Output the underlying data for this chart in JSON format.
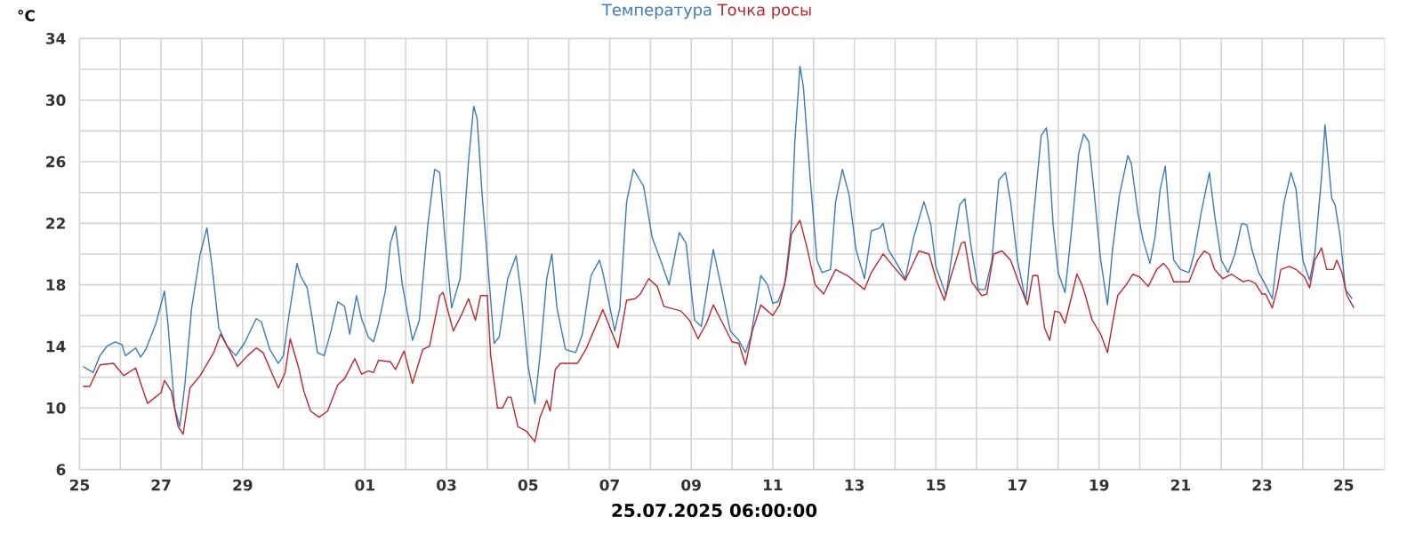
{
  "chart_data": {
    "type": "line",
    "ylabel": "°C",
    "xlabel": "25.07.2025 06:00:00",
    "legend": "top",
    "grid": true,
    "marker": "none",
    "line_style": "solid",
    "xlim": [
      "2025-07-25",
      "2025-08-26"
    ],
    "ylim": [
      6,
      34
    ],
    "xticks": [
      {
        "value": "2025-07-25",
        "label": "25"
      },
      {
        "value": "2025-07-26",
        "label": null
      },
      {
        "value": "2025-07-27",
        "label": "27"
      },
      {
        "value": "2025-07-28",
        "label": null
      },
      {
        "value": "2025-07-29",
        "label": "29"
      },
      {
        "value": "2025-07-30",
        "label": null
      },
      {
        "value": "2025-07-31",
        "label": null
      },
      {
        "value": "2025-08-01",
        "label": "01"
      },
      {
        "value": "2025-08-02",
        "label": null
      },
      {
        "value": "2025-08-03",
        "label": "03"
      },
      {
        "value": "2025-08-04",
        "label": null
      },
      {
        "value": "2025-08-05",
        "label": "05"
      },
      {
        "value": "2025-08-06",
        "label": null
      },
      {
        "value": "2025-08-07",
        "label": "07"
      },
      {
        "value": "2025-08-08",
        "label": null
      },
      {
        "value": "2025-08-09",
        "label": "09"
      },
      {
        "value": "2025-08-10",
        "label": null
      },
      {
        "value": "2025-08-11",
        "label": "11"
      },
      {
        "value": "2025-08-12",
        "label": null
      },
      {
        "value": "2025-08-13",
        "label": "13"
      },
      {
        "value": "2025-08-14",
        "label": null
      },
      {
        "value": "2025-08-15",
        "label": "15"
      },
      {
        "value": "2025-08-16",
        "label": null
      },
      {
        "value": "2025-08-17",
        "label": "17"
      },
      {
        "value": "2025-08-18",
        "label": null
      },
      {
        "value": "2025-08-19",
        "label": "19"
      },
      {
        "value": "2025-08-20",
        "label": null
      },
      {
        "value": "2025-08-21",
        "label": "21"
      },
      {
        "value": "2025-08-22",
        "label": null
      },
      {
        "value": "2025-08-23",
        "label": "23"
      },
      {
        "value": "2025-08-24",
        "label": null
      },
      {
        "value": "2025-08-25",
        "label": "25"
      }
    ],
    "yticks": [
      6,
      {
        "value": 8,
        "label": null
      },
      10,
      {
        "value": 12,
        "label": null
      },
      14,
      {
        "value": 16,
        "label": null
      },
      18,
      {
        "value": 20,
        "label": null
      },
      22,
      {
        "value": 24,
        "label": null
      },
      26,
      {
        "value": 28,
        "label": null
      },
      30,
      {
        "value": 32,
        "label": null
      },
      34
    ],
    "series": [
      {
        "name": "Температура",
        "color": "#3a7bb8",
        "x": [
          "2025-07-25T02:00",
          "2025-07-25T08:00",
          "2025-07-25T12:00",
          "2025-07-25T16:00",
          "2025-07-25T21:00",
          "2025-07-26T01:00",
          "2025-07-26T03:00",
          "2025-07-26T09:00",
          "2025-07-26T12:00",
          "2025-07-26T15:00",
          "2025-07-26T21:00",
          "2025-07-27T02:00",
          "2025-07-27T04:00",
          "2025-07-27T08:00",
          "2025-07-27T11:00",
          "2025-07-27T14:00",
          "2025-07-27T18:00",
          "2025-07-27T23:00",
          "2025-07-28T03:00",
          "2025-07-28T06:00",
          "2025-07-28T10:00",
          "2025-07-28T15:00",
          "2025-07-28T20:00",
          "2025-07-29T01:00",
          "2025-07-29T08:00",
          "2025-07-29T11:00",
          "2025-07-29T16:00",
          "2025-07-29T21:00",
          "2025-07-30T00:00",
          "2025-07-30T03:00",
          "2025-07-30T08:00",
          "2025-07-30T10:00",
          "2025-07-30T14:00",
          "2025-07-30T17:00",
          "2025-07-30T20:00",
          "2025-07-31T00:00",
          "2025-07-31T04:00",
          "2025-07-31T08:00",
          "2025-07-31T12:00",
          "2025-07-31T15:00",
          "2025-07-31T19:00",
          "2025-07-31T22:00",
          "2025-08-01T02:00",
          "2025-08-01T05:00",
          "2025-08-01T08:00",
          "2025-08-01T12:00",
          "2025-08-01T15:00",
          "2025-08-01T18:00",
          "2025-08-01T22:00",
          "2025-08-02T04:00",
          "2025-08-02T08:00",
          "2025-08-02T13:00",
          "2025-08-02T17:00",
          "2025-08-02T20:00",
          "2025-08-02T23:00",
          "2025-08-03T03:00",
          "2025-08-03T08:00",
          "2025-08-03T13:00",
          "2025-08-03T16:00",
          "2025-08-03T18:00",
          "2025-08-03T21:00",
          "2025-08-04T01:00",
          "2025-08-04T04:00",
          "2025-08-04T07:00",
          "2025-08-04T12:00",
          "2025-08-04T17:00",
          "2025-08-04T20:00",
          "2025-08-05T00:00",
          "2025-08-05T04:00",
          "2025-08-05T07:00",
          "2025-08-05T11:00",
          "2025-08-05T14:00",
          "2025-08-05T17:00",
          "2025-08-05T22:00",
          "2025-08-06T04:00",
          "2025-08-06T08:00",
          "2025-08-06T13:00",
          "2025-08-06T18:00",
          "2025-08-06T20:00",
          "2025-08-07T03:00",
          "2025-08-07T06:00",
          "2025-08-07T10:00",
          "2025-08-07T14:00",
          "2025-08-07T20:00",
          "2025-08-08T01:00",
          "2025-08-08T06:00",
          "2025-08-08T11:00",
          "2025-08-08T17:00",
          "2025-08-08T21:00",
          "2025-08-09T02:00",
          "2025-08-09T06:00",
          "2025-08-09T13:00",
          "2025-08-09T18:00",
          "2025-08-09T23:00",
          "2025-08-10T04:00",
          "2025-08-10T08:00",
          "2025-08-10T11:00",
          "2025-08-10T17:00",
          "2025-08-10T21:00",
          "2025-08-11T00:00",
          "2025-08-11T03:00",
          "2025-08-11T07:00",
          "2025-08-11T11:00",
          "2025-08-11T13:00",
          "2025-08-11T16:00",
          "2025-08-11T18:00",
          "2025-08-11T22:00",
          "2025-08-12T02:00",
          "2025-08-12T05:00",
          "2025-08-12T10:00",
          "2025-08-12T13:00",
          "2025-08-12T17:00",
          "2025-08-12T21:00",
          "2025-08-13T01:00",
          "2025-08-13T06:00",
          "2025-08-13T10:00",
          "2025-08-13T15:00",
          "2025-08-13T17:00",
          "2025-08-13T20:00",
          "2025-08-14T02:00",
          "2025-08-14T06:00",
          "2025-08-14T11:00",
          "2025-08-14T17:00",
          "2025-08-14T21:00",
          "2025-08-15T00:00",
          "2025-08-15T06:00",
          "2025-08-15T09:00",
          "2025-08-15T14:00",
          "2025-08-15T17:00",
          "2025-08-15T21:00",
          "2025-08-16T01:00",
          "2025-08-16T05:00",
          "2025-08-16T09:00",
          "2025-08-16T13:00",
          "2025-08-16T17:00",
          "2025-08-16T20:00",
          "2025-08-17T00:00",
          "2025-08-17T05:00",
          "2025-08-17T09:00",
          "2025-08-17T14:00",
          "2025-08-17T17:00",
          "2025-08-17T18:00",
          "2025-08-17T21:00",
          "2025-08-18T00:00",
          "2025-08-18T04:00",
          "2025-08-18T08:00",
          "2025-08-18T12:00",
          "2025-08-18T15:00",
          "2025-08-18T18:00",
          "2025-08-18T21:00",
          "2025-08-19T01:00",
          "2025-08-19T05:00",
          "2025-08-19T08:00",
          "2025-08-19T12:00",
          "2025-08-19T17:00",
          "2025-08-19T19:00",
          "2025-08-19T23:00",
          "2025-08-20T02:00",
          "2025-08-20T06:00",
          "2025-08-20T09:00",
          "2025-08-20T12:00",
          "2025-08-20T15:00",
          "2025-08-20T17:00",
          "2025-08-20T20:00",
          "2025-08-21T00:00",
          "2025-08-21T05:00",
          "2025-08-21T08:00",
          "2025-08-21T12:00",
          "2025-08-21T17:00",
          "2025-08-21T20:00",
          "2025-08-22T00:00",
          "2025-08-22T04:00",
          "2025-08-22T08:00",
          "2025-08-22T12:00",
          "2025-08-22T15:00",
          "2025-08-22T18:00",
          "2025-08-22T22:00",
          "2025-08-23T02:00",
          "2025-08-23T06:00",
          "2025-08-23T09:00",
          "2025-08-23T13:00",
          "2025-08-23T17:00",
          "2025-08-23T20:00",
          "2025-08-24T00:00",
          "2025-08-24T04:00",
          "2025-08-24T07:00",
          "2025-08-24T11:00",
          "2025-08-24T13:00",
          "2025-08-24T17:00",
          "2025-08-24T19:00",
          "2025-08-24T22:00",
          "2025-08-25T01:00",
          "2025-08-25T05:00"
        ],
        "values": [
          12.7,
          12.3,
          13.4,
          14.0,
          14.3,
          14.1,
          13.4,
          13.9,
          13.3,
          13.8,
          15.5,
          17.6,
          15.5,
          10.0,
          8.8,
          11.5,
          16.5,
          20.0,
          21.7,
          19.2,
          15.2,
          14.0,
          13.4,
          14.2,
          15.8,
          15.6,
          13.8,
          12.9,
          13.4,
          15.8,
          19.4,
          18.6,
          17.8,
          15.8,
          13.6,
          13.4,
          15.0,
          16.9,
          16.6,
          14.8,
          17.3,
          15.8,
          14.6,
          14.3,
          15.5,
          17.6,
          20.7,
          21.8,
          18.0,
          14.4,
          15.7,
          21.9,
          25.5,
          25.3,
          21.1,
          16.5,
          18.4,
          26.1,
          29.6,
          28.8,
          23.8,
          18.4,
          14.2,
          14.6,
          18.4,
          19.9,
          17.3,
          12.7,
          10.3,
          13.4,
          18.4,
          20.0,
          16.5,
          13.8,
          13.6,
          14.8,
          18.6,
          19.6,
          18.8,
          15.0,
          16.5,
          23.4,
          25.5,
          24.4,
          21.1,
          19.6,
          18.0,
          21.4,
          20.7,
          15.7,
          15.3,
          20.3,
          17.7,
          15.0,
          14.4,
          13.6,
          14.6,
          18.6,
          18.0,
          16.8,
          16.9,
          18.0,
          21.9,
          27.3,
          32.2,
          30.9,
          25.0,
          19.6,
          18.8,
          19.0,
          23.4,
          25.5,
          23.8,
          20.3,
          18.4,
          21.5,
          21.7,
          22.0,
          20.3,
          19.2,
          18.4,
          21.1,
          23.4,
          21.9,
          19.2,
          17.3,
          19.6,
          23.2,
          23.6,
          20.3,
          17.7,
          17.7,
          19.6,
          24.8,
          25.3,
          23.4,
          19.6,
          16.9,
          21.9,
          27.7,
          28.2,
          27.3,
          21.9,
          18.8,
          17.5,
          21.7,
          26.5,
          27.8,
          27.3,
          24.2,
          19.6,
          16.7,
          20.3,
          23.8,
          26.4,
          25.9,
          22.6,
          20.9,
          19.4,
          21.1,
          24.2,
          25.7,
          23.0,
          19.6,
          19.0,
          18.8,
          20.0,
          22.6,
          25.3,
          22.6,
          19.6,
          18.8,
          20.0,
          22.0,
          21.9,
          20.3,
          18.8,
          18.0,
          17.1,
          20.0,
          23.4,
          25.3,
          24.2,
          19.6,
          18.3,
          20.0,
          25.0,
          28.4,
          23.6,
          23.2,
          21.1,
          17.7,
          17.1
        ]
      },
      {
        "name": "Точка росы",
        "color": "#b8282f",
        "x": [
          "2025-07-25T02:00",
          "2025-07-25T06:00",
          "2025-07-25T12:00",
          "2025-07-25T20:00",
          "2025-07-26T02:00",
          "2025-07-26T09:00",
          "2025-07-26T16:00",
          "2025-07-27T00:00",
          "2025-07-27T02:00",
          "2025-07-27T06:00",
          "2025-07-27T10:00",
          "2025-07-27T13:00",
          "2025-07-27T17:00",
          "2025-07-27T23:00",
          "2025-07-28T07:00",
          "2025-07-28T11:00",
          "2025-07-28T16:00",
          "2025-07-28T21:00",
          "2025-07-29T03:00",
          "2025-07-29T08:00",
          "2025-07-29T12:00",
          "2025-07-29T21:00",
          "2025-07-30T01:00",
          "2025-07-30T04:00",
          "2025-07-30T09:00",
          "2025-07-30T12:00",
          "2025-07-30T16:00",
          "2025-07-30T21:00",
          "2025-07-31T02:00",
          "2025-07-31T08:00",
          "2025-07-31T12:00",
          "2025-07-31T18:00",
          "2025-07-31T22:00",
          "2025-08-01T02:00",
          "2025-08-01T05:00",
          "2025-08-01T08:00",
          "2025-08-01T15:00",
          "2025-08-01T18:00",
          "2025-08-01T23:00",
          "2025-08-02T04:00",
          "2025-08-02T10:00",
          "2025-08-02T14:00",
          "2025-08-02T20:00",
          "2025-08-02T22:00",
          "2025-08-03T04:00",
          "2025-08-03T09:00",
          "2025-08-03T13:00",
          "2025-08-03T17:00",
          "2025-08-03T20:00",
          "2025-08-04T00:00",
          "2025-08-04T02:00",
          "2025-08-04T06:00",
          "2025-08-04T09:00",
          "2025-08-04T12:00",
          "2025-08-04T14:00",
          "2025-08-04T18:00",
          "2025-08-04T23:00",
          "2025-08-05T04:00",
          "2025-08-05T07:00",
          "2025-08-05T11:00",
          "2025-08-05T13:00",
          "2025-08-05T16:00",
          "2025-08-05T19:00",
          "2025-08-06T05:00",
          "2025-08-06T10:00",
          "2025-08-06T20:00",
          "2025-08-07T01:00",
          "2025-08-07T05:00",
          "2025-08-07T10:00",
          "2025-08-07T15:00",
          "2025-08-07T18:00",
          "2025-08-07T23:00",
          "2025-08-08T04:00",
          "2025-08-08T08:00",
          "2025-08-08T18:00",
          "2025-08-08T23:00",
          "2025-08-09T04:00",
          "2025-08-09T09:00",
          "2025-08-09T13:00",
          "2025-08-09T19:00",
          "2025-08-10T00:00",
          "2025-08-10T04:00",
          "2025-08-10T08:00",
          "2025-08-10T12:00",
          "2025-08-10T17:00",
          "2025-08-10T21:00",
          "2025-08-11T00:00",
          "2025-08-11T04:00",
          "2025-08-11T08:00",
          "2025-08-11T11:00",
          "2025-08-11T16:00",
          "2025-08-11T20:00",
          "2025-08-12T01:00",
          "2025-08-12T06:00",
          "2025-08-12T13:00",
          "2025-08-12T20:00",
          "2025-08-13T06:00",
          "2025-08-13T10:00",
          "2025-08-13T17:00",
          "2025-08-13T23:00",
          "2025-08-14T06:00",
          "2025-08-14T14:00",
          "2025-08-14T20:00",
          "2025-08-15T00:00",
          "2025-08-15T05:00",
          "2025-08-15T09:00",
          "2025-08-15T15:00",
          "2025-08-15T17:00",
          "2025-08-15T21:00",
          "2025-08-16T03:00",
          "2025-08-16T06:00",
          "2025-08-16T10:00",
          "2025-08-16T15:00",
          "2025-08-16T20:00",
          "2025-08-17T01:00",
          "2025-08-17T06:00",
          "2025-08-17T09:00",
          "2025-08-17T12:00",
          "2025-08-17T16:00",
          "2025-08-17T19:00",
          "2025-08-17T22:00",
          "2025-08-18T01:00",
          "2025-08-18T04:00",
          "2025-08-18T08:00",
          "2025-08-18T11:00",
          "2025-08-18T14:00",
          "2025-08-18T16:00",
          "2025-08-18T20:00",
          "2025-08-19T01:00",
          "2025-08-19T05:00",
          "2025-08-19T08:00",
          "2025-08-19T11:00",
          "2025-08-19T16:00",
          "2025-08-19T20:00",
          "2025-08-20T00:00",
          "2025-08-20T05:00",
          "2025-08-20T10:00",
          "2025-08-20T14:00",
          "2025-08-20T17:00",
          "2025-08-20T20:00",
          "2025-08-21T02:00",
          "2025-08-21T05:00",
          "2025-08-21T10:00",
          "2025-08-21T14:00",
          "2025-08-21T17:00",
          "2025-08-21T20:00",
          "2025-08-22T01:00",
          "2025-08-22T06:00",
          "2025-08-22T10:00",
          "2025-08-22T13:00",
          "2025-08-22T16:00",
          "2025-08-22T20:00",
          "2025-08-23T00:00",
          "2025-08-23T02:00",
          "2025-08-23T06:00",
          "2025-08-23T09:00",
          "2025-08-23T11:00",
          "2025-08-23T16:00",
          "2025-08-23T20:00",
          "2025-08-24T01:00",
          "2025-08-24T04:00",
          "2025-08-24T07:00",
          "2025-08-24T11:00",
          "2025-08-24T14:00",
          "2025-08-24T18:00",
          "2025-08-24T20:00",
          "2025-08-24T23:00",
          "2025-08-25T02:00",
          "2025-08-25T06:00"
        ],
        "values": [
          11.4,
          11.4,
          12.8,
          12.9,
          12.1,
          12.6,
          10.3,
          11.0,
          11.8,
          11.1,
          8.8,
          8.3,
          11.3,
          12.1,
          13.6,
          14.8,
          13.8,
          12.7,
          13.4,
          13.9,
          13.6,
          11.3,
          12.3,
          14.5,
          12.6,
          11.1,
          9.8,
          9.4,
          9.8,
          11.5,
          11.9,
          13.2,
          12.2,
          12.4,
          12.3,
          13.1,
          13.0,
          12.5,
          13.7,
          11.6,
          13.8,
          14.0,
          17.3,
          17.5,
          15.0,
          16.1,
          17.1,
          15.7,
          17.3,
          17.3,
          13.4,
          10.0,
          10.0,
          10.7,
          10.7,
          8.8,
          8.5,
          7.8,
          9.4,
          10.5,
          9.8,
          12.5,
          12.9,
          12.9,
          13.8,
          16.4,
          15.0,
          13.9,
          17.0,
          17.1,
          17.4,
          18.4,
          17.9,
          16.6,
          16.3,
          15.7,
          14.5,
          15.5,
          16.7,
          15.4,
          14.3,
          14.2,
          12.8,
          15.0,
          16.7,
          16.3,
          16.0,
          16.7,
          18.6,
          21.3,
          22.2,
          20.5,
          18.0,
          17.4,
          19.0,
          18.6,
          17.7,
          18.8,
          20.0,
          19.2,
          18.3,
          20.2,
          20.0,
          18.4,
          17.0,
          18.6,
          20.7,
          20.8,
          18.2,
          17.3,
          17.4,
          20.0,
          20.2,
          19.6,
          18.1,
          16.7,
          18.6,
          18.6,
          15.2,
          14.4,
          16.3,
          16.2,
          15.5,
          17.3,
          18.7,
          18.0,
          17.3,
          15.7,
          14.8,
          13.6,
          15.5,
          17.3,
          18.0,
          18.7,
          18.5,
          17.9,
          19.0,
          19.4,
          19.0,
          18.2,
          18.2,
          18.2,
          19.6,
          20.2,
          20.0,
          19.0,
          18.4,
          18.7,
          18.4,
          18.2,
          18.3,
          18.1,
          17.4,
          17.4,
          16.5,
          17.8,
          19.0,
          19.2,
          19.0,
          18.5,
          17.8,
          19.6,
          20.4,
          19.0,
          19.0,
          19.6,
          18.8,
          17.3,
          16.5
        ]
      }
    ]
  }
}
